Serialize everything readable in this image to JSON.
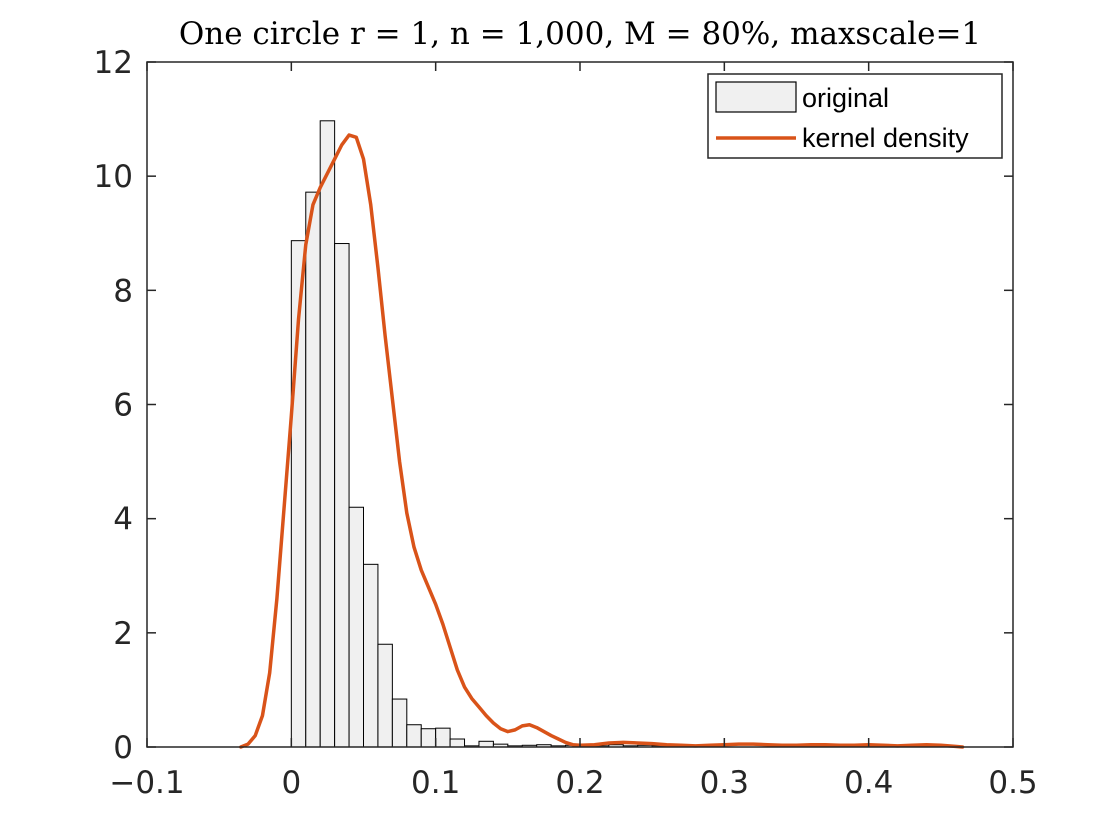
{
  "chart_data": {
    "type": "bar",
    "title": "One circle r = 1, n = 1,000, M = 80%, maxscale=1",
    "xlabel": "",
    "ylabel": "",
    "xlim": [
      -0.1,
      0.5
    ],
    "ylim": [
      0,
      12
    ],
    "xticks": [
      -0.1,
      0,
      0.1,
      0.2,
      0.3,
      0.4,
      0.5
    ],
    "xtick_labels": [
      "−0.1",
      "0",
      "0.1",
      "0.2",
      "0.3",
      "0.4",
      "0.5"
    ],
    "yticks": [
      0,
      2,
      4,
      6,
      8,
      10,
      12
    ],
    "ytick_labels": [
      "0",
      "2",
      "4",
      "6",
      "8",
      "10",
      "12"
    ],
    "grid": false,
    "legend_location": "top-right",
    "legend": [
      "original",
      "kernel density"
    ],
    "colors": {
      "bar_fill": "#f0f0f0",
      "bar_edge": "#000000",
      "kde_line": "#d95319",
      "axis": "#262626"
    },
    "series": [
      {
        "name": "original",
        "kind": "histogram",
        "bin_width": 0.01,
        "bins": [
          {
            "x0": 0.0,
            "value": 8.87
          },
          {
            "x0": 0.01,
            "value": 9.72
          },
          {
            "x0": 0.02,
            "value": 10.97
          },
          {
            "x0": 0.03,
            "value": 8.82
          },
          {
            "x0": 0.04,
            "value": 4.2
          },
          {
            "x0": 0.05,
            "value": 3.2
          },
          {
            "x0": 0.06,
            "value": 1.8
          },
          {
            "x0": 0.07,
            "value": 0.84
          },
          {
            "x0": 0.08,
            "value": 0.39
          },
          {
            "x0": 0.09,
            "value": 0.32
          },
          {
            "x0": 0.1,
            "value": 0.33
          },
          {
            "x0": 0.11,
            "value": 0.14
          },
          {
            "x0": 0.12,
            "value": 0.02
          },
          {
            "x0": 0.13,
            "value": 0.1
          },
          {
            "x0": 0.14,
            "value": 0.05
          },
          {
            "x0": 0.15,
            "value": 0.02
          },
          {
            "x0": 0.16,
            "value": 0.03
          },
          {
            "x0": 0.17,
            "value": 0.04
          },
          {
            "x0": 0.18,
            "value": 0.02
          },
          {
            "x0": 0.19,
            "value": 0.03
          },
          {
            "x0": 0.2,
            "value": 0.02
          },
          {
            "x0": 0.21,
            "value": 0.02
          },
          {
            "x0": 0.22,
            "value": 0.04
          },
          {
            "x0": 0.23,
            "value": 0.02
          },
          {
            "x0": 0.24,
            "value": 0.03
          },
          {
            "x0": 0.25,
            "value": 0.02
          },
          {
            "x0": 0.26,
            "value": 0.01
          }
        ]
      },
      {
        "name": "kernel density",
        "kind": "line",
        "points": [
          [
            -0.035,
            0.0
          ],
          [
            -0.03,
            0.05
          ],
          [
            -0.025,
            0.2
          ],
          [
            -0.02,
            0.55
          ],
          [
            -0.015,
            1.3
          ],
          [
            -0.01,
            2.6
          ],
          [
            -0.005,
            4.2
          ],
          [
            0.0,
            5.8
          ],
          [
            0.005,
            7.5
          ],
          [
            0.01,
            8.8
          ],
          [
            0.015,
            9.5
          ],
          [
            0.02,
            9.8
          ],
          [
            0.025,
            10.05
          ],
          [
            0.03,
            10.3
          ],
          [
            0.035,
            10.55
          ],
          [
            0.04,
            10.72
          ],
          [
            0.045,
            10.68
          ],
          [
            0.05,
            10.3
          ],
          [
            0.055,
            9.5
          ],
          [
            0.06,
            8.4
          ],
          [
            0.065,
            7.2
          ],
          [
            0.07,
            6.1
          ],
          [
            0.075,
            5.0
          ],
          [
            0.08,
            4.1
          ],
          [
            0.085,
            3.5
          ],
          [
            0.09,
            3.1
          ],
          [
            0.095,
            2.8
          ],
          [
            0.1,
            2.5
          ],
          [
            0.105,
            2.15
          ],
          [
            0.11,
            1.75
          ],
          [
            0.115,
            1.35
          ],
          [
            0.12,
            1.05
          ],
          [
            0.125,
            0.85
          ],
          [
            0.13,
            0.7
          ],
          [
            0.135,
            0.55
          ],
          [
            0.14,
            0.42
          ],
          [
            0.145,
            0.32
          ],
          [
            0.15,
            0.27
          ],
          [
            0.155,
            0.3
          ],
          [
            0.16,
            0.37
          ],
          [
            0.165,
            0.39
          ],
          [
            0.17,
            0.34
          ],
          [
            0.175,
            0.27
          ],
          [
            0.18,
            0.2
          ],
          [
            0.185,
            0.14
          ],
          [
            0.19,
            0.08
          ],
          [
            0.195,
            0.04
          ],
          [
            0.2,
            0.03
          ],
          [
            0.21,
            0.04
          ],
          [
            0.22,
            0.07
          ],
          [
            0.23,
            0.08
          ],
          [
            0.24,
            0.07
          ],
          [
            0.25,
            0.06
          ],
          [
            0.26,
            0.04
          ],
          [
            0.27,
            0.03
          ],
          [
            0.28,
            0.02
          ],
          [
            0.29,
            0.03
          ],
          [
            0.3,
            0.04
          ],
          [
            0.31,
            0.05
          ],
          [
            0.32,
            0.05
          ],
          [
            0.33,
            0.04
          ],
          [
            0.34,
            0.03
          ],
          [
            0.35,
            0.03
          ],
          [
            0.36,
            0.04
          ],
          [
            0.37,
            0.04
          ],
          [
            0.38,
            0.03
          ],
          [
            0.39,
            0.03
          ],
          [
            0.4,
            0.04
          ],
          [
            0.41,
            0.03
          ],
          [
            0.42,
            0.02
          ],
          [
            0.43,
            0.03
          ],
          [
            0.44,
            0.04
          ],
          [
            0.45,
            0.03
          ],
          [
            0.46,
            0.01
          ],
          [
            0.465,
            0.0
          ]
        ]
      }
    ]
  }
}
